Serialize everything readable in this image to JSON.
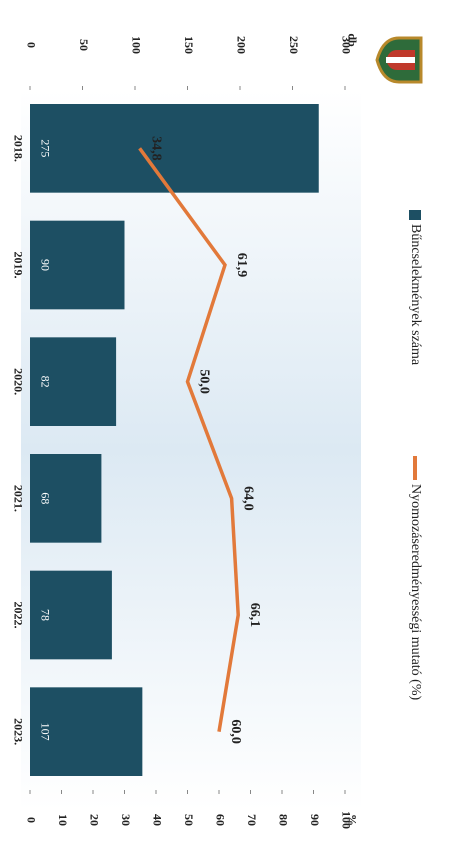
{
  "chart_data": {
    "type": "bar_line",
    "categories": [
      "2018.",
      "2019.",
      "2020.",
      "2021.",
      "2022.",
      "2023."
    ],
    "series": [
      {
        "name": "Bűncselekmények száma",
        "type": "bar",
        "color": "#1d4f63",
        "values": [
          275,
          90,
          82,
          68,
          78,
          107
        ]
      },
      {
        "name": "Nyomozáseredményességi mutató (%)",
        "type": "line",
        "axis": "y2",
        "color": "#e2793a",
        "values": [
          34.8,
          61.9,
          50.0,
          64.0,
          66.1,
          60.0
        ],
        "value_labels": [
          "34,8",
          "61,9",
          "50,0",
          "64,0",
          "66,1",
          "60,0"
        ]
      }
    ],
    "y_label": "db",
    "y2_label": "%",
    "ylim": [
      0,
      300
    ],
    "yticks": [
      0,
      50,
      100,
      150,
      200,
      250,
      300
    ],
    "y2lim": [
      0,
      100
    ],
    "y2ticks": [
      0,
      10,
      20,
      30,
      40,
      50,
      60,
      70,
      80,
      90,
      100
    ]
  }
}
